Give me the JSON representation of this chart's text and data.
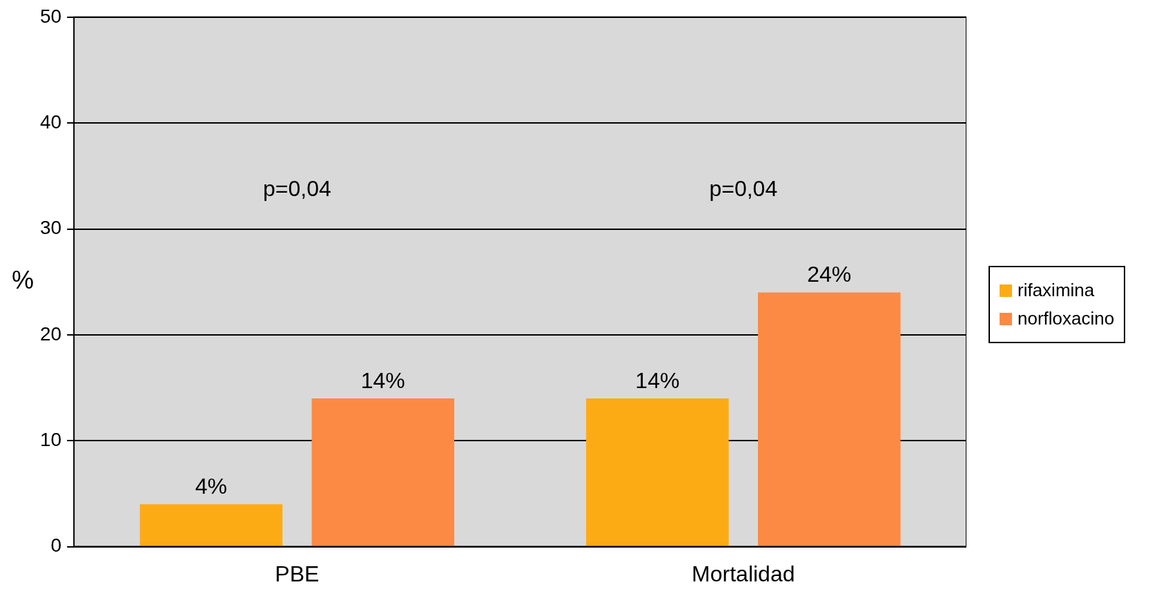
{
  "chart_data": {
    "type": "bar",
    "ylabel": "%",
    "categories": [
      "PBE",
      "Mortalidad"
    ],
    "series": [
      {
        "name": "rifaximina",
        "color": "#fdab15",
        "values": [
          4,
          14
        ],
        "value_labels": [
          "4%",
          "14%"
        ]
      },
      {
        "name": "norfloxacino",
        "color": "#fd8a44",
        "values": [
          14,
          24
        ],
        "value_labels": [
          "14%",
          "24%"
        ]
      }
    ],
    "ylim": [
      0,
      50
    ],
    "yticks": [
      0,
      10,
      20,
      30,
      40,
      50
    ],
    "grid": "y",
    "legend": "right",
    "annotations": [
      "p=0,04",
      "p=0,04"
    ]
  }
}
